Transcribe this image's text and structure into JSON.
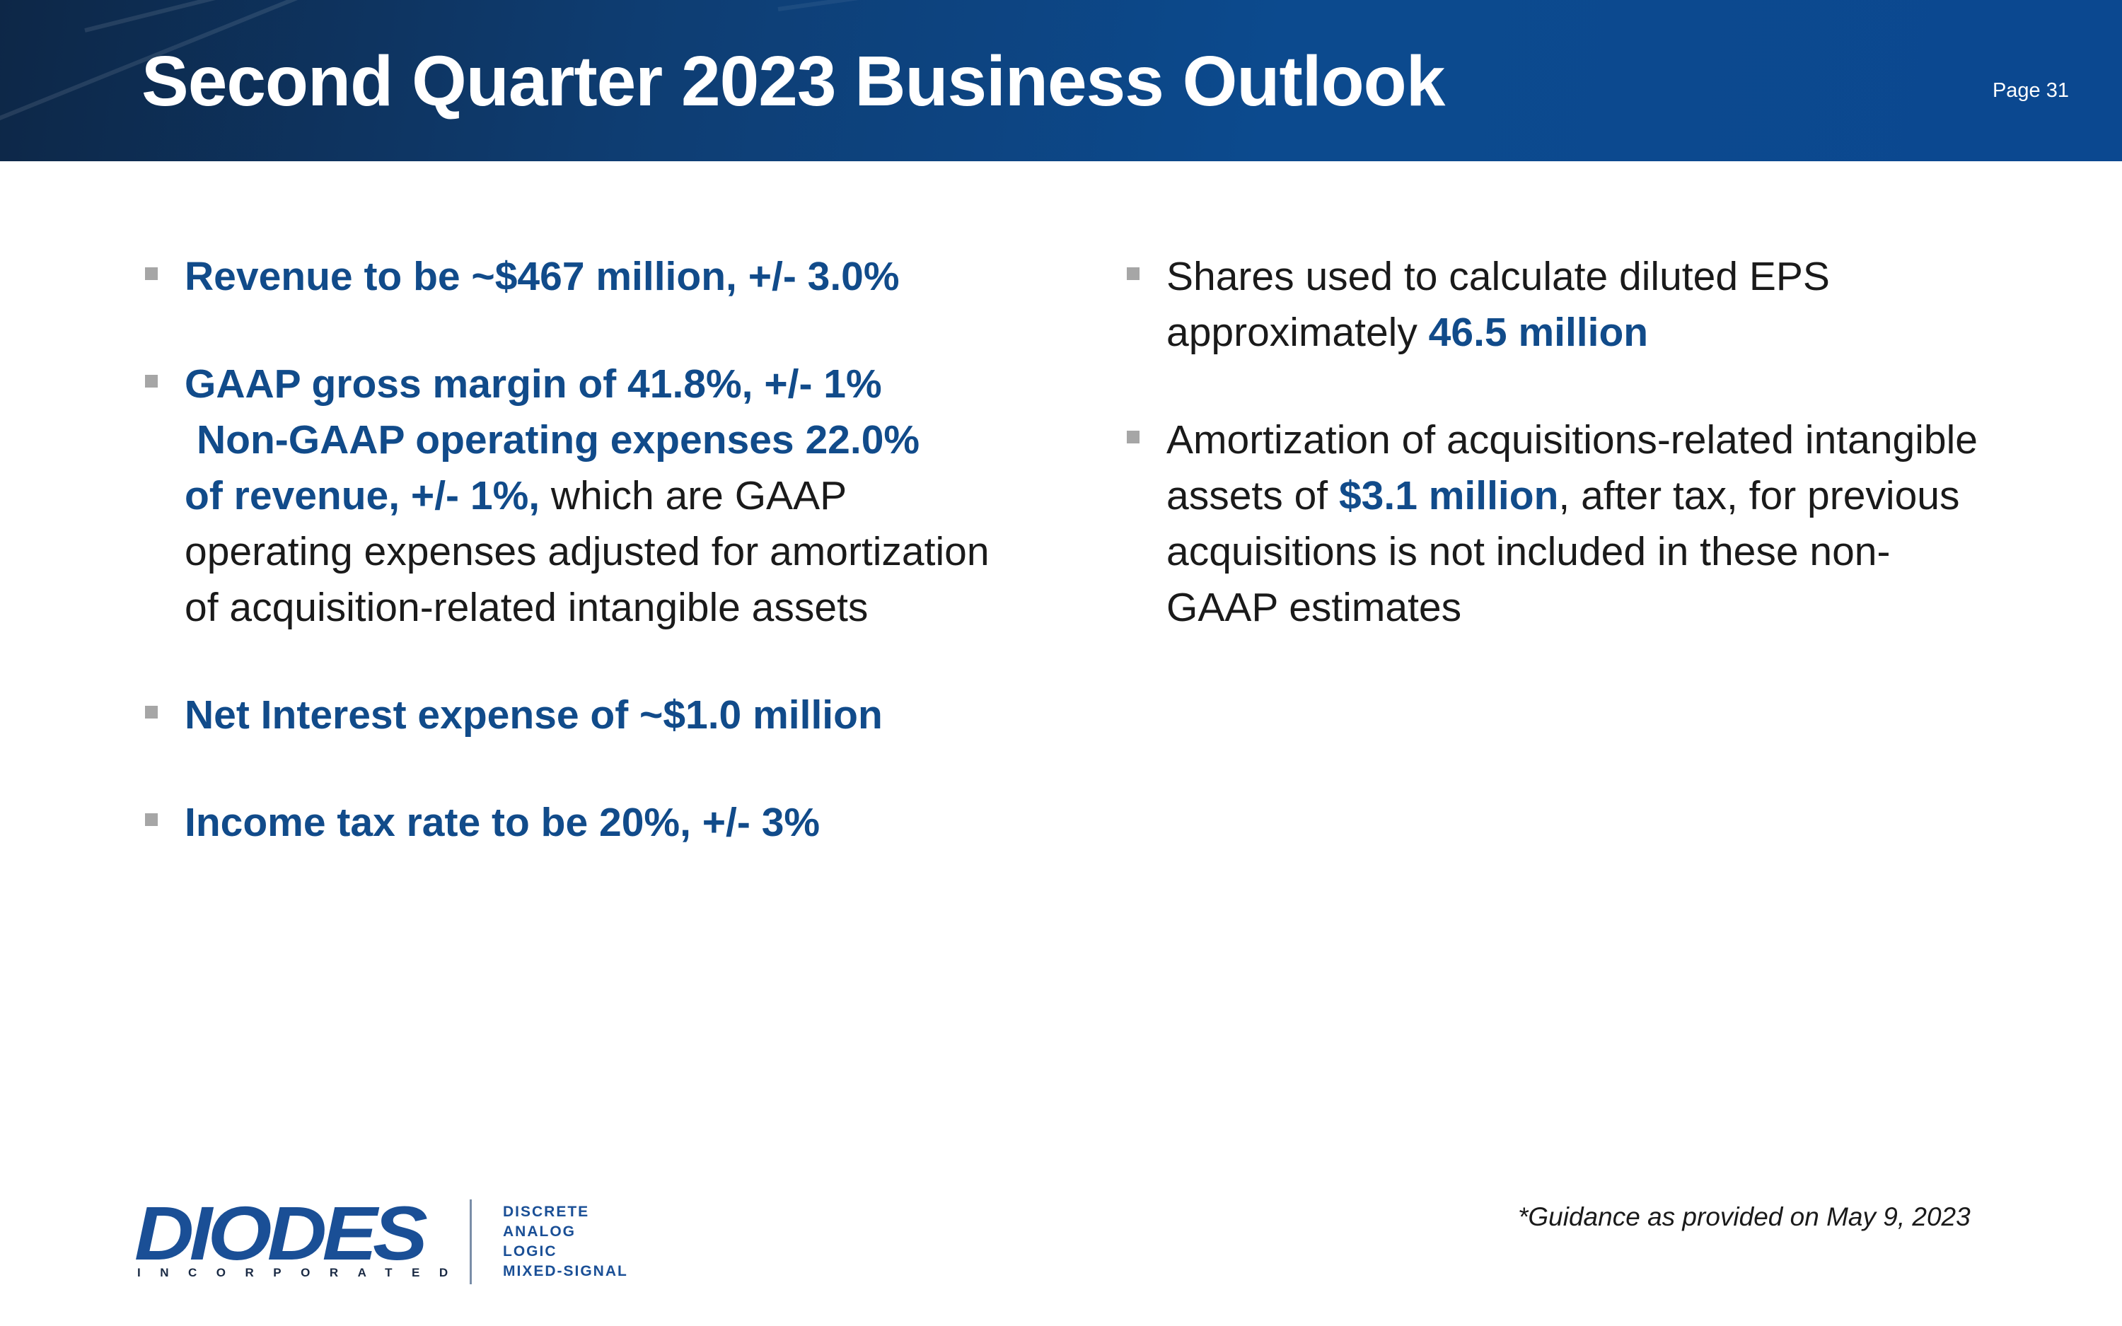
{
  "header": {
    "title": "Second Quarter 2023 Business Outlook",
    "page": "Page 31"
  },
  "left_bullets": {
    "b1": "Revenue to be ~$467 million, +/- 3.0%",
    "b2_line1": "GAAP gross margin of 41.8%, +/- 1%",
    "b2_line2": "Non-GAAP operating expenses 22.0%",
    "b2_line3_bold": "of revenue, +/- 1%,",
    "b2_line3_rest": " which are GAAP",
    "b2_line4": "operating expenses adjusted for amortization",
    "b2_line5": "of acquisition-related intangible assets",
    "b3": "Net Interest expense of ~$1.0 million",
    "b4": "Income tax rate to be 20%, +/- 3%"
  },
  "right_bullets": {
    "b1_line1": "Shares used to calculate diluted EPS",
    "b1_line2_pre": "approximately ",
    "b1_line2_bold": "46.5 million",
    "b2_line1": "Amortization of acquisitions-related intangible",
    "b2_line2_pre": "assets of ",
    "b2_line2_bold": "$3.1 million",
    "b2_line2_rest": ", after tax, for previous",
    "b2_line3": "acquisitions is not included in these non-",
    "b2_line4": "GAAP estimates"
  },
  "footnote": "*Guidance as provided on May 9, 2023",
  "logo": {
    "name": "DIODES",
    "sub": "INCORPORATED",
    "tags": [
      "DISCRETE",
      "ANALOG",
      "LOGIC",
      "MIXED-SIGNAL"
    ]
  },
  "colors": {
    "accent_blue": "#114b8a",
    "header_dark": "#0d2747",
    "bullet_gray": "#a6a6a6"
  }
}
